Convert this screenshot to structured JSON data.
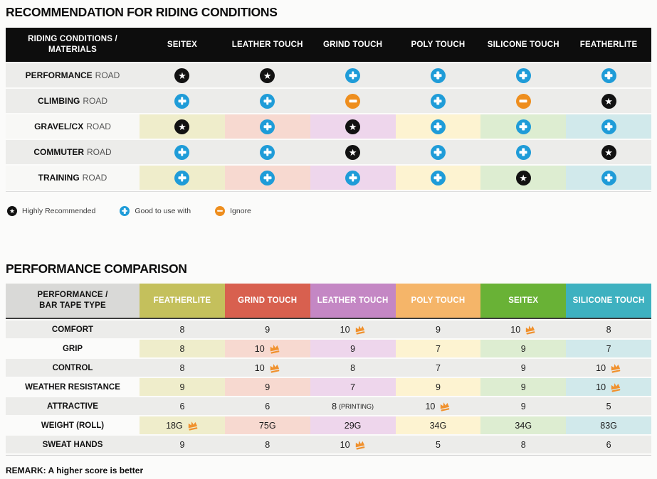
{
  "section1": {
    "title": "RECOMMENDATION FOR RIDING CONDITIONS",
    "header_line1": "RIDING CONDITIONS /",
    "header_line2": "MATERIALS",
    "columns": [
      "SEITEX",
      "LEATHER TOUCH",
      "GRIND TOUCH",
      "POLY TOUCH",
      "SILICONE TOUCH",
      "FEATHERLITE"
    ],
    "rows": [
      {
        "label_bold": "PERFORMANCE",
        "label_rest": "ROAD",
        "tinted": false,
        "cells": [
          "star",
          "star",
          "plus",
          "plus",
          "plus",
          "plus"
        ]
      },
      {
        "label_bold": "CLIMBING",
        "label_rest": "ROAD",
        "tinted": false,
        "cells": [
          "plus",
          "plus",
          "minus",
          "plus",
          "minus",
          "star"
        ]
      },
      {
        "label_bold": "GRAVEL/CX",
        "label_rest": "ROAD",
        "tinted": true,
        "cells": [
          "star",
          "plus",
          "star",
          "plus",
          "plus",
          "plus"
        ]
      },
      {
        "label_bold": "COMMUTER",
        "label_rest": "ROAD",
        "tinted": false,
        "cells": [
          "plus",
          "plus",
          "star",
          "plus",
          "plus",
          "star"
        ]
      },
      {
        "label_bold": "TRAINING",
        "label_rest": "ROAD",
        "tinted": true,
        "cells": [
          "plus",
          "plus",
          "plus",
          "plus",
          "star",
          "plus"
        ]
      }
    ],
    "legend": [
      {
        "icon": "star",
        "label": "Highly Recommended"
      },
      {
        "icon": "plus",
        "label": "Good to use with"
      },
      {
        "icon": "minus",
        "label": "Ignore"
      }
    ]
  },
  "section2": {
    "title": "PERFORMANCE COMPARISON",
    "header_line1": "PERFORMANCE /",
    "header_line2": "BAR TAPE TYPE",
    "columns": [
      {
        "label": "FEATHERLITE",
        "color": "#c4c05c"
      },
      {
        "label": "GRIND TOUCH",
        "color": "#d8604f"
      },
      {
        "label": "LEATHER TOUCH",
        "color": "#c487c4"
      },
      {
        "label": "POLY TOUCH",
        "color": "#f5b569"
      },
      {
        "label": "SEITEX",
        "color": "#69b236"
      },
      {
        "label": "SILICONE TOUCH",
        "color": "#3eb1c0"
      }
    ],
    "rows": [
      {
        "label": "COMFORT",
        "tinted": false,
        "cells": [
          {
            "v": "8"
          },
          {
            "v": "9"
          },
          {
            "v": "10",
            "crown": true
          },
          {
            "v": "9"
          },
          {
            "v": "10",
            "crown": true
          },
          {
            "v": "8"
          }
        ]
      },
      {
        "label": "GRIP",
        "tinted": true,
        "cells": [
          {
            "v": "8"
          },
          {
            "v": "10",
            "crown": true
          },
          {
            "v": "9"
          },
          {
            "v": "7"
          },
          {
            "v": "9"
          },
          {
            "v": "7"
          }
        ]
      },
      {
        "label": "CONTROL",
        "tinted": false,
        "cells": [
          {
            "v": "8"
          },
          {
            "v": "10",
            "crown": true
          },
          {
            "v": "8"
          },
          {
            "v": "7"
          },
          {
            "v": "9"
          },
          {
            "v": "10",
            "crown": true
          }
        ]
      },
      {
        "label": "WEATHER RESISTANCE",
        "tinted": true,
        "cells": [
          {
            "v": "9"
          },
          {
            "v": "9"
          },
          {
            "v": "7"
          },
          {
            "v": "9"
          },
          {
            "v": "9"
          },
          {
            "v": "10",
            "crown": true
          }
        ]
      },
      {
        "label": "ATTRACTIVE",
        "tinted": false,
        "cells": [
          {
            "v": "6"
          },
          {
            "v": "6"
          },
          {
            "v": "8",
            "note": "(PRINTING)"
          },
          {
            "v": "10",
            "crown": true
          },
          {
            "v": "9"
          },
          {
            "v": "5"
          }
        ]
      },
      {
        "label": "WEIGHT (ROLL)",
        "tinted": true,
        "cells": [
          {
            "v": "18G",
            "crown": true
          },
          {
            "v": "75G"
          },
          {
            "v": "29G"
          },
          {
            "v": "34G"
          },
          {
            "v": "34G"
          },
          {
            "v": "83G"
          }
        ]
      },
      {
        "label": "SWEAT HANDS",
        "tinted": false,
        "cells": [
          {
            "v": "9"
          },
          {
            "v": "8"
          },
          {
            "v": "10",
            "crown": true
          },
          {
            "v": "5"
          },
          {
            "v": "8"
          },
          {
            "v": "6"
          }
        ]
      }
    ],
    "remark": "REMARK: A higher score is better"
  },
  "tints": [
    "#efedcb",
    "#f7d9d0",
    "#eed6ec",
    "#fdf3d1",
    "#ddedd1",
    "#d1e9eb"
  ],
  "colors": {
    "header_black": "#0d0d0d",
    "gray_row": "#ececea",
    "plus_blue": "#1f9cd8",
    "ignore_orange": "#ee8e1e",
    "star_black": "#121212",
    "crown_orange": "#f0912d"
  },
  "icons": {
    "star": "star-icon (highly recommended)",
    "plus": "plus-icon (good to use with)",
    "minus": "minus-icon (ignore)",
    "crown": "crown-icon (best score)"
  }
}
